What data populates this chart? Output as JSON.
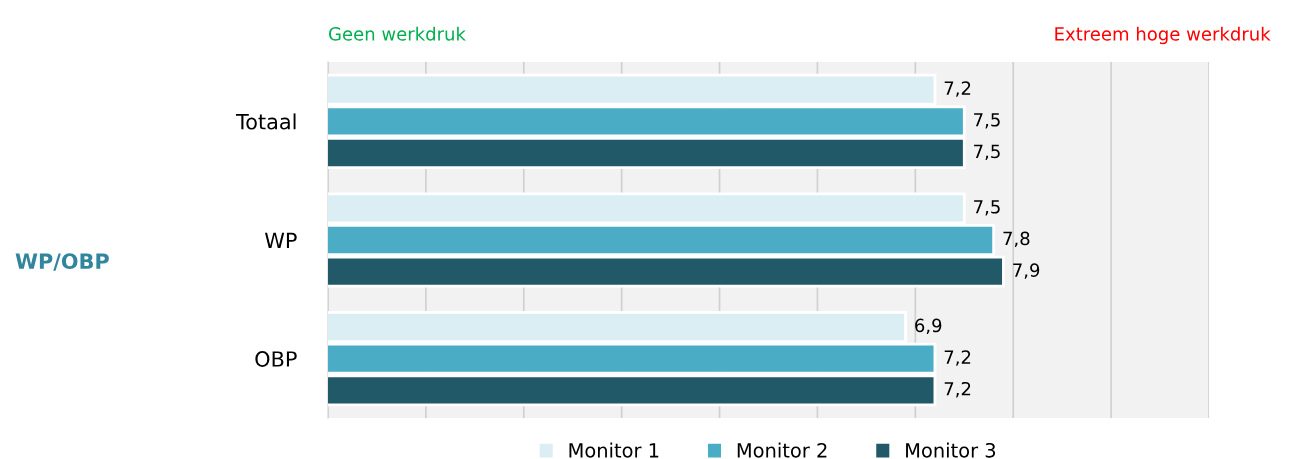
{
  "chart_data": {
    "type": "bar",
    "orientation": "horizontal",
    "annotations": [
      "Geen werkdruk",
      "Extreem hoge werkdruk",
      "WP/OBP"
    ],
    "categories": [
      "Totaal",
      "WP",
      "OBP"
    ],
    "series": [
      {
        "name": "Monitor 1",
        "color": "#dbeef4",
        "values": [
          7.2,
          7.5,
          6.9
        ],
        "value_labels": [
          "7,2",
          "7,5",
          "6,9"
        ]
      },
      {
        "name": "Monitor 2",
        "color": "#4bacc6",
        "values": [
          7.5,
          7.8,
          7.2
        ],
        "value_labels": [
          "7,5",
          "7,8",
          "7,2"
        ]
      },
      {
        "name": "Monitor 3",
        "color": "#215968",
        "values": [
          7.5,
          7.9,
          7.2
        ],
        "value_labels": [
          "7,5",
          "7,9",
          "7,2"
        ]
      }
    ],
    "xlim": [
      1,
      10
    ],
    "xticks": [
      {
        "value": 1,
        "label": null
      },
      {
        "value": 2,
        "label": null
      },
      {
        "value": 3,
        "label": null
      },
      {
        "value": 4,
        "label": null
      },
      {
        "value": 5,
        "label": null
      },
      {
        "value": 6,
        "label": null
      },
      {
        "value": 7,
        "label": null
      },
      {
        "value": 8,
        "label": null
      },
      {
        "value": 9,
        "label": null
      },
      {
        "value": 10,
        "label": null
      }
    ],
    "grid": "x",
    "legend": "bottom",
    "tick_labels": "y"
  }
}
